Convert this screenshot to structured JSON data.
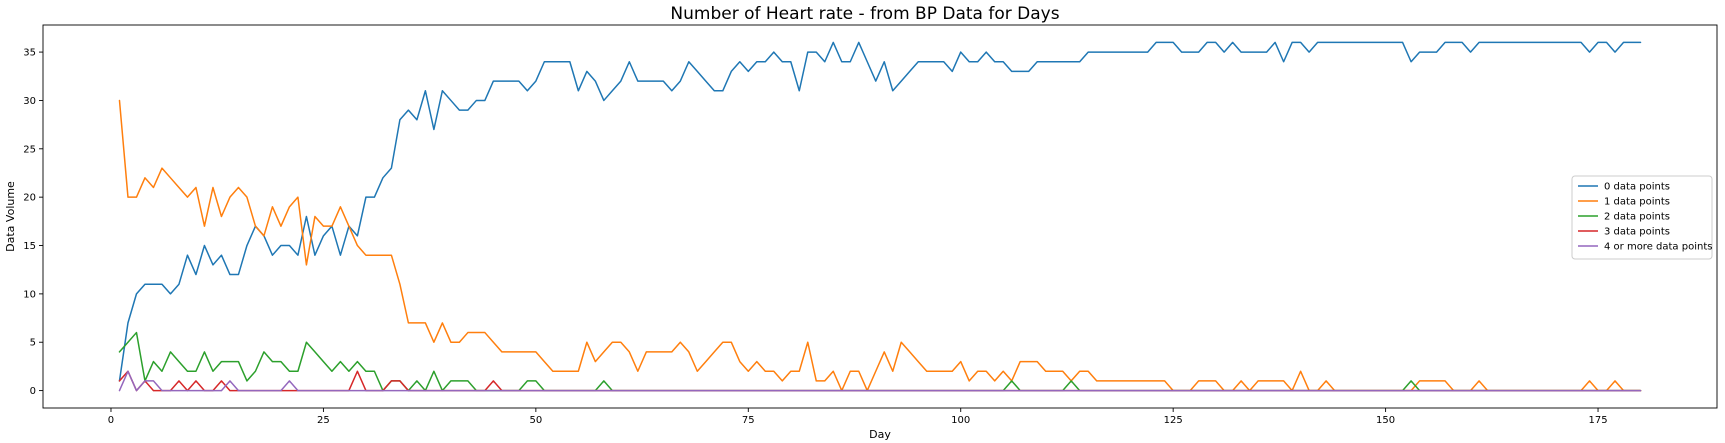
{
  "chart_data": {
    "type": "line",
    "title": "Number of Heart rate - from BP Data for Days",
    "xlabel": "Day",
    "ylabel": "Data Volume",
    "xlim": [
      -8,
      189
    ],
    "ylim": [
      -1.8,
      37.8
    ],
    "xticks": [
      0,
      25,
      50,
      75,
      100,
      125,
      150,
      175
    ],
    "yticks": [
      0,
      5,
      10,
      15,
      20,
      25,
      30,
      35
    ],
    "grid": false,
    "legend_position": "center-right",
    "x_start": 1,
    "x_end": 180,
    "series": [
      {
        "name": "0 data points",
        "color": "#1f77b4",
        "values": [
          1,
          7,
          10,
          11,
          11,
          11,
          10,
          11,
          14,
          12,
          15,
          13,
          14,
          12,
          12,
          15,
          17,
          16,
          14,
          15,
          15,
          14,
          18,
          14,
          16,
          17,
          14,
          17,
          16,
          20,
          20,
          22,
          23,
          28,
          29,
          28,
          31,
          27,
          31,
          30,
          29,
          29,
          30,
          30,
          32,
          32,
          32,
          32,
          31,
          32,
          34,
          34,
          34,
          34,
          31,
          33,
          32,
          30,
          31,
          32,
          34,
          32,
          32,
          32,
          32,
          31,
          32,
          34,
          33,
          32,
          31,
          31,
          33,
          34,
          33,
          34,
          34,
          35,
          34,
          34,
          31,
          35,
          35,
          34,
          36,
          34,
          34,
          36,
          34,
          32,
          34,
          31,
          32,
          33,
          34,
          34,
          34,
          34,
          33,
          35,
          34,
          34,
          35,
          34,
          34,
          33,
          33,
          33,
          34,
          34,
          34,
          34,
          34,
          34,
          35,
          35,
          35,
          35,
          35,
          35,
          35,
          35,
          36,
          36,
          36,
          35,
          35,
          35,
          36,
          36,
          35,
          36,
          35,
          35,
          35,
          35,
          36,
          34,
          36,
          36,
          35,
          36,
          36,
          36,
          36,
          36,
          36,
          36,
          36,
          36,
          36,
          36,
          34,
          35,
          35,
          35,
          36,
          36,
          36,
          35,
          36,
          36,
          36,
          36,
          36,
          36,
          36,
          36,
          36,
          36,
          36,
          36,
          36,
          35,
          36,
          36,
          35,
          36,
          36,
          36
        ]
      },
      {
        "name": "1 data points",
        "color": "#ff7f0e",
        "values": [
          30,
          20,
          20,
          22,
          21,
          23,
          22,
          21,
          20,
          21,
          17,
          21,
          18,
          20,
          21,
          20,
          17,
          16,
          19,
          17,
          19,
          20,
          13,
          18,
          17,
          17,
          19,
          17,
          15,
          14,
          14,
          14,
          14,
          11,
          7,
          7,
          7,
          5,
          7,
          5,
          5,
          6,
          6,
          6,
          5,
          4,
          4,
          4,
          4,
          4,
          3,
          2,
          2,
          2,
          2,
          5,
          3,
          4,
          5,
          5,
          4,
          2,
          4,
          4,
          4,
          4,
          5,
          4,
          2,
          3,
          4,
          5,
          5,
          3,
          2,
          3,
          2,
          2,
          1,
          2,
          2,
          5,
          1,
          1,
          2,
          0,
          2,
          2,
          0,
          2,
          4,
          2,
          5,
          4,
          3,
          2,
          2,
          2,
          2,
          3,
          1,
          2,
          2,
          1,
          2,
          1,
          3,
          3,
          3,
          2,
          2,
          2,
          1,
          2,
          2,
          1,
          1,
          1,
          1,
          1,
          1,
          1,
          1,
          1,
          0,
          0,
          0,
          1,
          1,
          1,
          0,
          0,
          1,
          0,
          1,
          1,
          1,
          1,
          0,
          2,
          0,
          0,
          1,
          0,
          0,
          0,
          0,
          0,
          0,
          0,
          0,
          0,
          0,
          1,
          1,
          1,
          1,
          0,
          0,
          0,
          1,
          0,
          0,
          0,
          0,
          0,
          0,
          0,
          0,
          0,
          0,
          0,
          0,
          1,
          0,
          0,
          1,
          0,
          0,
          0
        ]
      },
      {
        "name": "2 data points",
        "color": "#2ca02c",
        "values": [
          4,
          5,
          6,
          1,
          3,
          2,
          4,
          3,
          2,
          2,
          4,
          2,
          3,
          3,
          3,
          1,
          2,
          4,
          3,
          3,
          2,
          2,
          5,
          4,
          3,
          2,
          3,
          2,
          3,
          2,
          2,
          0,
          1,
          1,
          0,
          1,
          0,
          2,
          0,
          1,
          1,
          1,
          0,
          0,
          0,
          0,
          0,
          0,
          1,
          1,
          0,
          0,
          0,
          0,
          0,
          0,
          0,
          1,
          0,
          0,
          0,
          0,
          0,
          0,
          0,
          0,
          0,
          0,
          0,
          0,
          0,
          0,
          0,
          0,
          0,
          0,
          0,
          0,
          0,
          0,
          0,
          0,
          0,
          0,
          0,
          0,
          0,
          0,
          0,
          0,
          0,
          0,
          0,
          0,
          0,
          0,
          0,
          0,
          0,
          0,
          0,
          0,
          0,
          0,
          0,
          1,
          0,
          0,
          0,
          0,
          0,
          0,
          1,
          0,
          0,
          0,
          0,
          0,
          0,
          0,
          0,
          0,
          0,
          0,
          0,
          0,
          0,
          0,
          0,
          0,
          0,
          0,
          0,
          0,
          0,
          0,
          0,
          0,
          0,
          0,
          0,
          0,
          0,
          0,
          0,
          0,
          0,
          0,
          0,
          0,
          0,
          0,
          1,
          0,
          0,
          0,
          0,
          0,
          0,
          0,
          0,
          0,
          0,
          0,
          0,
          0,
          0,
          0,
          0,
          0,
          0,
          0,
          0,
          0,
          0,
          0,
          0,
          0,
          0,
          0
        ]
      },
      {
        "name": "3 data points",
        "color": "#d62728",
        "values": [
          1,
          2,
          0,
          1,
          0,
          0,
          0,
          1,
          0,
          1,
          0,
          0,
          1,
          0,
          0,
          0,
          0,
          0,
          0,
          0,
          0,
          0,
          0,
          0,
          0,
          0,
          0,
          0,
          2,
          0,
          0,
          0,
          1,
          1,
          0,
          0,
          0,
          0,
          0,
          0,
          0,
          0,
          0,
          0,
          1,
          0,
          0,
          0,
          0,
          0,
          0,
          0,
          0,
          0,
          0,
          0,
          0,
          0,
          0,
          0,
          0,
          0,
          0,
          0,
          0,
          0,
          0,
          0,
          0,
          0,
          0,
          0,
          0,
          0,
          0,
          0,
          0,
          0,
          0,
          0,
          0,
          0,
          0,
          0,
          0,
          0,
          0,
          0,
          0,
          0,
          0,
          0,
          0,
          0,
          0,
          0,
          0,
          0,
          0,
          0,
          0,
          0,
          0,
          0,
          0,
          0,
          0,
          0,
          0,
          0,
          0,
          0,
          0,
          0,
          0,
          0,
          0,
          0,
          0,
          0,
          0,
          0,
          0,
          0,
          0,
          0,
          0,
          0,
          0,
          0,
          0,
          0,
          0,
          0,
          0,
          0,
          0,
          0,
          0,
          0,
          0,
          0,
          0,
          0,
          0,
          0,
          0,
          0,
          0,
          0,
          0,
          0,
          0,
          0,
          0,
          0,
          0,
          0,
          0,
          0,
          0,
          0,
          0,
          0,
          0,
          0,
          0,
          0,
          0,
          0,
          0,
          0,
          0,
          0,
          0,
          0,
          0,
          0,
          0,
          0
        ]
      },
      {
        "name": "4 or more data points",
        "color": "#9467bd",
        "values": [
          0,
          2,
          0,
          1,
          1,
          0,
          0,
          0,
          0,
          0,
          0,
          0,
          0,
          1,
          0,
          0,
          0,
          0,
          0,
          0,
          1,
          0,
          0,
          0,
          0,
          0,
          0,
          0,
          0,
          0,
          0,
          0,
          0,
          0,
          0,
          0,
          0,
          0,
          0,
          0,
          0,
          0,
          0,
          0,
          0,
          0,
          0,
          0,
          0,
          0,
          0,
          0,
          0,
          0,
          0,
          0,
          0,
          0,
          0,
          0,
          0,
          0,
          0,
          0,
          0,
          0,
          0,
          0,
          0,
          0,
          0,
          0,
          0,
          0,
          0,
          0,
          0,
          0,
          0,
          0,
          0,
          0,
          0,
          0,
          0,
          0,
          0,
          0,
          0,
          0,
          0,
          0,
          0,
          0,
          0,
          0,
          0,
          0,
          0,
          0,
          0,
          0,
          0,
          0,
          0,
          0,
          0,
          0,
          0,
          0,
          0,
          0,
          0,
          0,
          0,
          0,
          0,
          0,
          0,
          0,
          0,
          0,
          0,
          0,
          0,
          0,
          0,
          0,
          0,
          0,
          0,
          0,
          0,
          0,
          0,
          0,
          0,
          0,
          0,
          0,
          0,
          0,
          0,
          0,
          0,
          0,
          0,
          0,
          0,
          0,
          0,
          0,
          0,
          0,
          0,
          0,
          0,
          0,
          0,
          0,
          0,
          0,
          0,
          0,
          0,
          0,
          0,
          0,
          0,
          0,
          0,
          0,
          0,
          0,
          0,
          0,
          0,
          0,
          0,
          0
        ]
      }
    ]
  }
}
